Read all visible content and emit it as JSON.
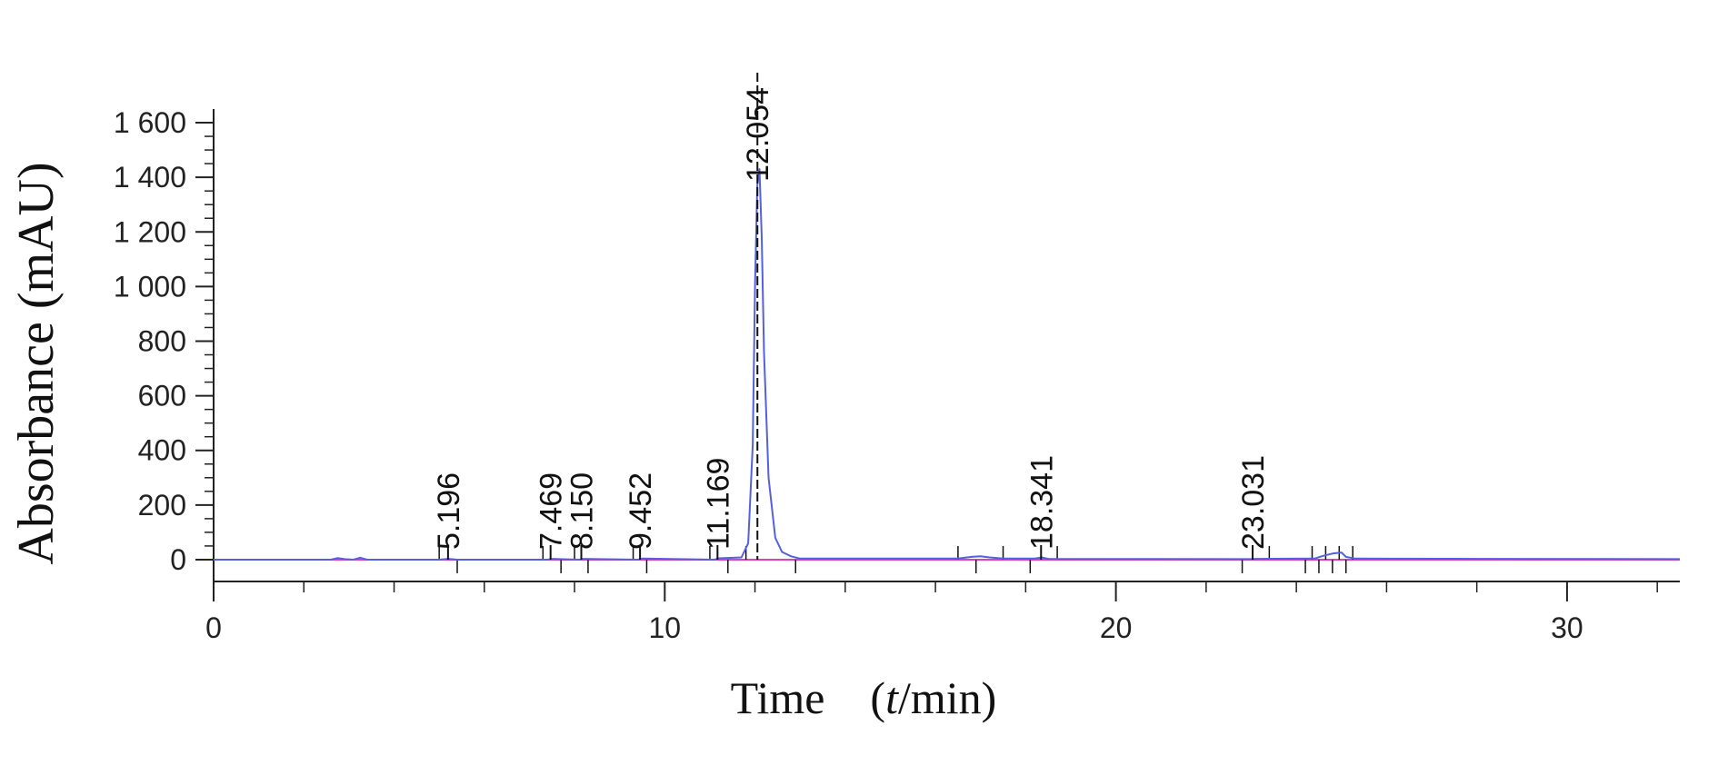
{
  "chart_data": {
    "type": "line",
    "title": "",
    "xlabel_prefix": "Time (",
    "xlabel_var": "t",
    "xlabel_suffix": "/min)",
    "ylabel": "Absorbance (mAU)",
    "xlim": [
      0,
      32.5
    ],
    "ylim": [
      -80,
      1650
    ],
    "x_ticks": [
      0,
      10,
      20,
      30
    ],
    "x_tick_labels": [
      "0",
      "10",
      "20",
      "30"
    ],
    "x_minor_step": 2,
    "y_ticks": [
      0,
      200,
      400,
      600,
      800,
      1000,
      1200,
      1400,
      1600
    ],
    "y_tick_labels": [
      "0",
      "200",
      "400",
      "600",
      "800",
      "1 000",
      "1 200",
      "1 400",
      "1 600"
    ],
    "y_minor_step": 50,
    "grid": false,
    "colors": {
      "signal": "#5560e0",
      "baseline": "#e040c0",
      "marker": "#111111",
      "axis": "#222222"
    },
    "peak_labels": [
      {
        "x": 5.196,
        "label": "5.196"
      },
      {
        "x": 7.469,
        "label": "7.469"
      },
      {
        "x": 8.15,
        "label": "8.150"
      },
      {
        "x": 9.452,
        "label": "9.452"
      },
      {
        "x": 11.169,
        "label": "11.169"
      },
      {
        "x": 12.054,
        "label": "12.054"
      },
      {
        "x": 18.341,
        "label": "18.341"
      },
      {
        "x": 23.031,
        "label": "23.031"
      }
    ],
    "integration_marks": [
      5.0,
      5.4,
      7.3,
      7.7,
      8.0,
      8.3,
      9.3,
      9.6,
      11.0,
      11.4,
      11.8,
      12.9,
      16.5,
      16.9,
      17.5,
      18.1,
      18.7,
      22.8,
      23.4,
      24.2,
      24.35,
      24.5,
      24.65,
      24.8,
      24.95,
      25.1,
      25.25
    ],
    "series": [
      {
        "x": [
          0,
          2.6,
          2.75,
          2.9,
          3.1,
          3.25,
          3.4,
          5.0,
          5.2,
          5.4,
          7.4,
          7.5,
          8.1,
          8.2,
          9.4,
          9.5,
          11.1,
          11.2,
          11.7,
          11.85,
          11.95,
          12.0,
          12.05,
          12.1,
          12.15,
          12.2,
          12.3,
          12.45,
          12.6,
          12.8,
          13.0,
          16.5,
          16.8,
          17.0,
          17.2,
          17.5,
          18.2,
          18.35,
          18.5,
          23.0,
          23.1,
          24.4,
          24.6,
          24.8,
          25.0,
          25.1,
          25.3,
          32.5
        ],
        "y": [
          0,
          0,
          6,
          2,
          0,
          7,
          0,
          0,
          3,
          0,
          0,
          3,
          0,
          3,
          0,
          4,
          0,
          5,
          8,
          60,
          420,
          1000,
          1370,
          1430,
          1180,
          760,
          300,
          80,
          28,
          12,
          4,
          4,
          10,
          12,
          8,
          4,
          4,
          8,
          3,
          2,
          3,
          4,
          14,
          22,
          26,
          10,
          4,
          2
        ]
      }
    ]
  }
}
